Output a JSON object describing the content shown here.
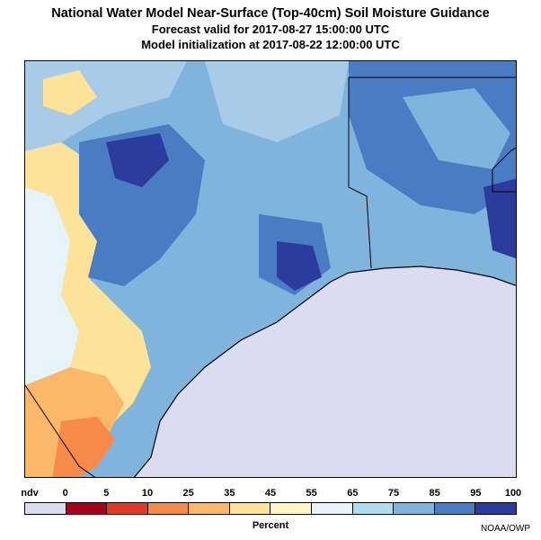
{
  "title": "National Water Model Near-Surface (Top-40cm) Soil Moisture Guidance",
  "forecast_line": "Forecast valid for 2017-08-27 15:00:00 UTC",
  "init_line": "Model initialization at 2017-08-22 12:00:00 UTC",
  "legend": {
    "ticks": [
      "ndv",
      "0",
      "5",
      "10",
      "25",
      "35",
      "45",
      "55",
      "65",
      "75",
      "85",
      "95",
      "100"
    ],
    "colors": [
      "#dcdcf0",
      "#a8001c",
      "#e03a2a",
      "#f58a4a",
      "#fbb86a",
      "#fde29a",
      "#fff6c8",
      "#e6f4fa",
      "#b0dcec",
      "#80b4dc",
      "#4a7cc4",
      "#2b3c9c"
    ],
    "unit_label": "Percent"
  },
  "credit": "NOAA/OWP",
  "map": {
    "water_color": "#dcdcf0",
    "land_colors": {
      "dry_hot": "#f58a4a",
      "dry": "#fbb86a",
      "moderate": "#fde29a",
      "light": "#e6f4fa",
      "moist": "#80b4dc",
      "wet": "#4a7cc4",
      "saturated": "#2b3c9c"
    }
  }
}
